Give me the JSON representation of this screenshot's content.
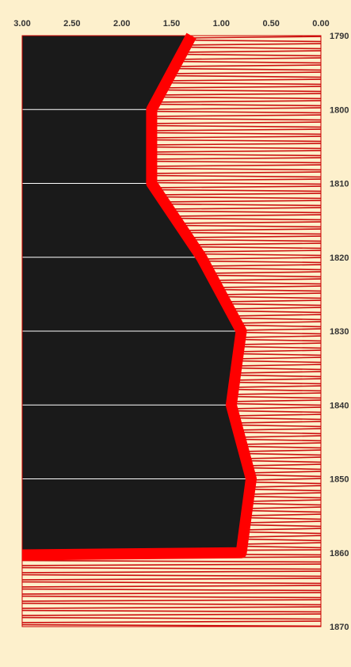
{
  "chart_data": {
    "type": "line",
    "title": "",
    "xlabel": "",
    "ylabel": "",
    "x_axis": {
      "position": "top",
      "reversed": true,
      "range": [
        3.0,
        0.0
      ],
      "ticks": [
        "3.00",
        "2.50",
        "2.00",
        "1.50",
        "1.00",
        "0.50",
        "0.00"
      ],
      "tick_values": [
        3.0,
        2.5,
        2.0,
        1.5,
        1.0,
        0.5,
        0.0
      ]
    },
    "y_axis": {
      "position": "right",
      "range": [
        1790,
        1870
      ],
      "ticks": [
        "1790",
        "1800",
        "1810",
        "1820",
        "1830",
        "1840",
        "1850",
        "1860",
        "1870"
      ],
      "tick_values": [
        1790,
        1800,
        1810,
        1820,
        1830,
        1840,
        1850,
        1860,
        1870
      ]
    },
    "grid": "horizontal",
    "series": [
      {
        "color": "#ff0000",
        "points": [
          {
            "year": 1790,
            "value": 1.3
          },
          {
            "year": 1800,
            "value": 1.7
          },
          {
            "year": 1810,
            "value": 1.7
          },
          {
            "year": 1820,
            "value": 1.2
          },
          {
            "year": 1830,
            "value": 0.8
          },
          {
            "year": 1840,
            "value": 0.9
          },
          {
            "year": 1850,
            "value": 0.7
          },
          {
            "year": 1860,
            "value": 0.8
          },
          {
            "year": 1860.3,
            "value": 3.0
          }
        ]
      }
    ],
    "colors": {
      "background": "#fdf0cc",
      "shaded_region": "#1a1a1a",
      "hatch": "#cc1010",
      "line": "#ff0000",
      "grid": "#ffffff",
      "border": "#cc0000"
    }
  }
}
